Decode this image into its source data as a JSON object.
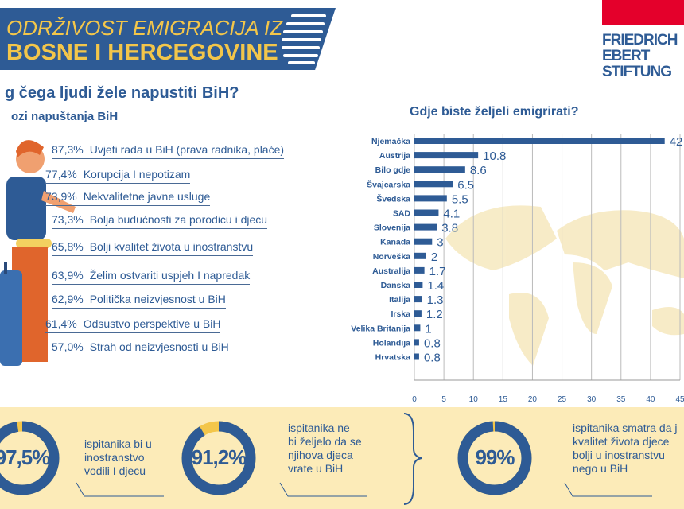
{
  "header": {
    "title_line1": "ODRŽIVOST EMIGRACIJA IZ",
    "title_line2": "BOSNE I HERCEGOVINE"
  },
  "logo": {
    "line1": "FRIEDRICH",
    "line2": "EBERT",
    "line3": "STIFTUNG"
  },
  "left": {
    "question": "g čega ljudi žele napustiti BiH?",
    "subtitle": "ozi napuštanja BiH",
    "reasons": [
      {
        "pct": "87,3%",
        "text": "Uvjeti rada u BiH (prava radnika, plaće)"
      },
      {
        "pct": "77,4%",
        "text": "Korupcija I nepotizam"
      },
      {
        "pct": "73,9%",
        "text": "Nekvalitetne javne usluge"
      },
      {
        "pct": "73,3%",
        "text": "Bolja budućnosti za porodicu i djecu"
      },
      {
        "pct": "65,8%",
        "text": "Bolji kvalitet života u inostranstvu"
      },
      {
        "pct": "63,9%",
        "text": "Želim ostvariti uspjeh I napredak"
      },
      {
        "pct": "62,9%",
        "text": "Politička neizvjesnost u BiH"
      },
      {
        "pct": "61,4%",
        "text": "Odsustvo perspektive u BiH"
      },
      {
        "pct": "57,0%",
        "text": "Strah od neizvjesnosti u BiH"
      }
    ]
  },
  "chart_data": {
    "type": "bar",
    "orientation": "horizontal",
    "title": "Gdje biste željeli emigrirati?",
    "categories": [
      "Njemačka",
      "Austrija",
      "Bilo gdje",
      "Švajcarska",
      "Švedska",
      "SAD",
      "Slovenija",
      "Kanada",
      "Norveška",
      "Australija",
      "Danska",
      "Italija",
      "Irska",
      "Velika Britanija",
      "Holandija",
      "Hrvatska"
    ],
    "values": [
      42.4,
      10.8,
      8.6,
      6.5,
      5.5,
      4.1,
      3.8,
      3,
      2,
      1.7,
      1.4,
      1.3,
      1.2,
      1,
      0.8,
      0.8
    ],
    "labels": [
      "42",
      "10.8",
      "8.6",
      "6.5",
      "5.5",
      "4.1",
      "3.8",
      "3",
      "2",
      "1.7",
      "1.4",
      "1.3",
      "1.2",
      "1",
      "0.8",
      "0.8"
    ],
    "xlim": [
      0,
      45
    ],
    "xticks": [
      "0",
      "5",
      "10",
      "15",
      "20",
      "25",
      "30",
      "35",
      "40",
      "45"
    ],
    "grid": true,
    "bar_color": "#2e5b95"
  },
  "stats": [
    {
      "value": "97,5%",
      "fraction": 0.975,
      "text": [
        "ispitanika bi u",
        "inostranstvo",
        "vodili I djecu"
      ]
    },
    {
      "value": "91,2%",
      "fraction": 0.912,
      "text": [
        "ispitanika ne",
        "bi željelo da se",
        "njihova djeca",
        "vrate u BiH"
      ]
    },
    {
      "value": "99%",
      "fraction": 0.99,
      "text": [
        "ispitanika smatra da j",
        "kvalitet života djece",
        "bolji u inostranstvu",
        "nego u BiH"
      ]
    }
  ],
  "colors": {
    "blue": "#2e5b95",
    "yellow": "#f3c64a",
    "band": "#fcebb8"
  }
}
